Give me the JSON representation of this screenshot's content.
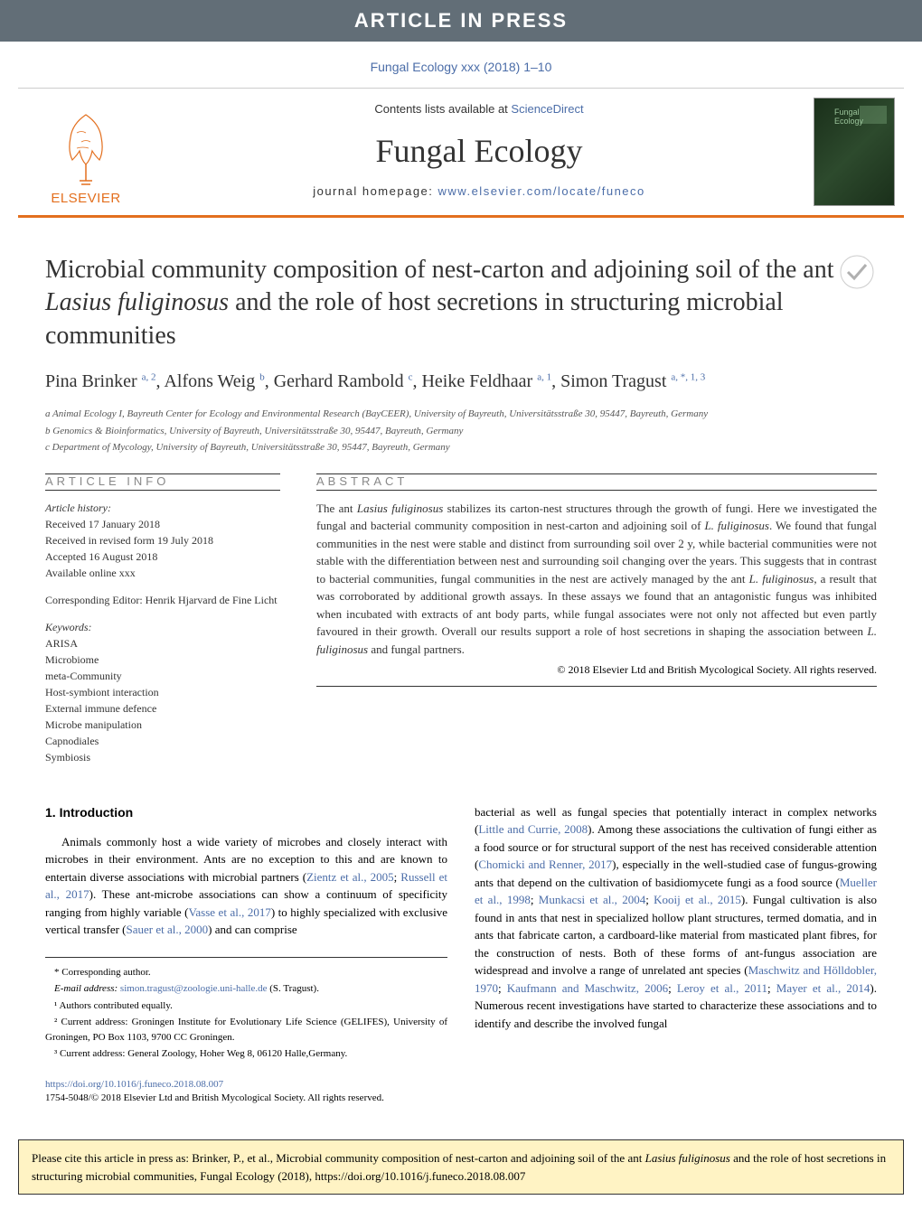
{
  "header": {
    "bar_text": "ARTICLE IN PRESS",
    "journal_ref": "Fungal Ecology xxx (2018) 1–10",
    "sd_prefix": "Contents lists available at ",
    "sd_link": "ScienceDirect",
    "journal_name": "Fungal Ecology",
    "homepage_prefix": "journal homepage: ",
    "homepage_url": "www.elsevier.com/locate/funeco",
    "elsevier": "ELSEVIER",
    "cover_label": "Fungal Ecology"
  },
  "title": {
    "pre": "Microbial community composition of nest-carton and adjoining soil of the ant ",
    "species": "Lasius fuliginosus",
    "post": " and the role of host secretions in structuring microbial communities"
  },
  "authors": {
    "a1_name": "Pina Brinker ",
    "a1_sup": "a, 2",
    "a2_name": ", Alfons Weig ",
    "a2_sup": "b",
    "a3_name": ", Gerhard Rambold ",
    "a3_sup": "c",
    "a4_name": ", Heike Feldhaar ",
    "a4_sup": "a, 1",
    "a5_name": ", Simon Tragust ",
    "a5_sup": "a, *, 1, 3"
  },
  "affiliations": {
    "a": "a Animal Ecology I, Bayreuth Center for Ecology and Environmental Research (BayCEER), University of Bayreuth, Universitätsstraße 30, 95447, Bayreuth, Germany",
    "b": "b Genomics & Bioinformatics, University of Bayreuth, Universitätsstraße 30, 95447, Bayreuth, Germany",
    "c": "c Department of Mycology, University of Bayreuth, Universitätsstraße 30, 95447, Bayreuth, Germany"
  },
  "article_info": {
    "heading": "ARTICLE INFO",
    "history_label": "Article history:",
    "received": "Received 17 January 2018",
    "revised": "Received in revised form 19 July 2018",
    "accepted": "Accepted 16 August 2018",
    "online": "Available online xxx",
    "editor": "Corresponding Editor: Henrik Hjarvard de Fine Licht",
    "keywords_label": "Keywords:",
    "keywords": [
      "ARISA",
      "Microbiome",
      "meta-Community",
      "Host-symbiont interaction",
      "External immune defence",
      "Microbe manipulation",
      "Capnodiales",
      "Symbiosis"
    ]
  },
  "abstract": {
    "heading": "ABSTRACT",
    "text_parts": [
      "The ant ",
      "Lasius fuliginosus",
      " stabilizes its carton-nest structures through the growth of fungi. Here we investigated the fungal and bacterial community composition in nest-carton and adjoining soil of ",
      "L. fuliginosus",
      ". We found that fungal communities in the nest were stable and distinct from surrounding soil over 2 y, while bacterial communities were not stable with the differentiation between nest and surrounding soil changing over the years. This suggests that in contrast to bacterial communities, fungal communities in the nest are actively managed by the ant ",
      "L. fuliginosus",
      ", a result that was corroborated by additional growth assays. In these assays we found that an antagonistic fungus was inhibited when incubated with extracts of ant body parts, while fungal associates were not only not affected but even partly favoured in their growth. Overall our results support a role of host secretions in shaping the association between ",
      "L. fuliginosus",
      " and fungal partners."
    ],
    "copyright": "© 2018 Elsevier Ltd and British Mycological Society. All rights reserved."
  },
  "intro": {
    "heading": "1. Introduction",
    "col1": "Animals commonly host a wide variety of microbes and closely interact with microbes in their environment. Ants are no exception to this and are known to entertain diverse associations with microbial partners (Zientz et al., 2005; Russell et al., 2017). These ant-microbe associations can show a continuum of specificity ranging from highly variable (Vasse et al., 2017) to highly specialized with exclusive vertical transfer (Sauer et al., 2000) and can comprise",
    "col2": "bacterial as well as fungal species that potentially interact in complex networks (Little and Currie, 2008). Among these associations the cultivation of fungi either as a food source or for structural support of the nest has received considerable attention (Chomicki and Renner, 2017), especially in the well-studied case of fungus-growing ants that depend on the cultivation of basidiomycete fungi as a food source (Mueller et al., 1998; Munkacsi et al., 2004; Kooij et al., 2015). Fungal cultivation is also found in ants that nest in specialized hollow plant structures, termed domatia, and in ants that fabricate carton, a cardboard-like material from masticated plant fibres, for the construction of nests. Both of these forms of ant-fungus association are widespread and involve a range of unrelated ant species (Maschwitz and Hölldobler, 1970; Kaufmann and Maschwitz, 2006; Leroy et al., 2011; Mayer et al., 2014). Numerous recent investigations have started to characterize these associations and to identify and describe the involved fungal"
  },
  "footnotes": {
    "corr": "* Corresponding author.",
    "email_label": "E-mail address: ",
    "email": "simon.tragust@zoologie.uni-halle.de",
    "email_suffix": " (S. Tragust).",
    "n1": "¹ Authors contributed equally.",
    "n2": "² Current address: Groningen Institute for Evolutionary Life Science (GELIFES), University of Groningen, PO Box 1103, 9700 CC Groningen.",
    "n3": "³ Current address: General Zoology, Hoher Weg 8, 06120 Halle,Germany."
  },
  "doi": {
    "link": "https://doi.org/10.1016/j.funeco.2018.08.007",
    "text": "1754-5048/© 2018 Elsevier Ltd and British Mycological Society. All rights reserved."
  },
  "citation": {
    "pre": "Please cite this article in press as: Brinker, P., et al., Microbial community composition of nest-carton and adjoining soil of the ant ",
    "species": "Lasius fuliginosus",
    "post": " and the role of host secretions in structuring microbial communities, Fungal Ecology (2018), https://doi.org/10.1016/j.funeco.2018.08.007"
  },
  "colors": {
    "header_bg": "#626e77",
    "link": "#4b6da8",
    "accent": "#e36f1e",
    "citation_bg": "#fff3c4"
  }
}
